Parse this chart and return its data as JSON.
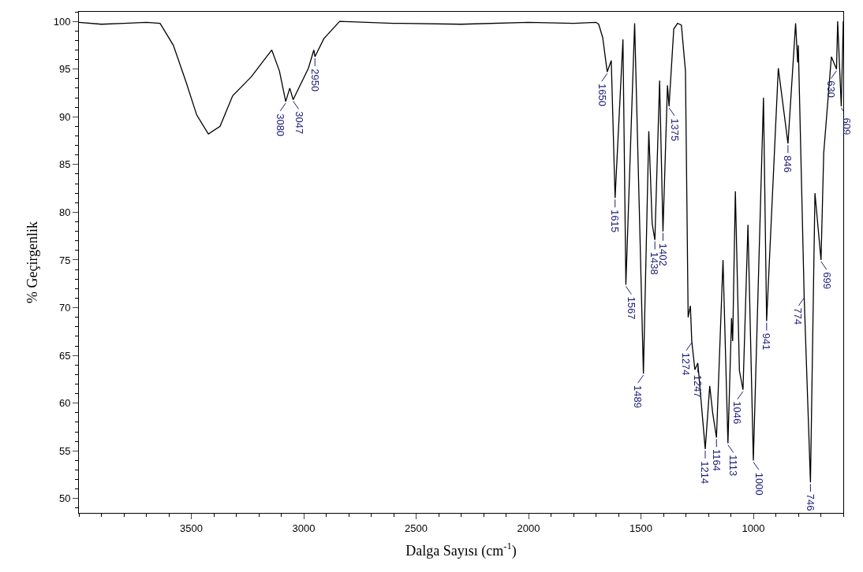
{
  "chart_data": {
    "type": "line",
    "xlabel": "Dalga Sayısı (cm$^{-1}$)",
    "ylabel": "% Geçirgenlik",
    "xlim": [
      4000,
      600
    ],
    "xticks": [
      3500,
      3000,
      2500,
      2000,
      1500,
      1000
    ],
    "ylim": [
      48.5,
      101
    ],
    "yticks": [
      50,
      55,
      60,
      65,
      70,
      75,
      80,
      85,
      90,
      95,
      100
    ],
    "marker": "none",
    "line_style": "solid",
    "series": [
      {
        "color": "#000000",
        "x": [
          4000,
          3900,
          3800,
          3700,
          3639,
          3580,
          3524,
          3476,
          3424,
          3372,
          3316,
          3233,
          3142,
          3108,
          3080,
          3062,
          3047,
          2979,
          2955,
          2950,
          2910,
          2840,
          2600,
          2300,
          2000,
          1800,
          1700,
          1688,
          1670,
          1650,
          1632,
          1615,
          1580,
          1567,
          1528,
          1489,
          1465,
          1450,
          1438,
          1417,
          1402,
          1382,
          1375,
          1354,
          1337,
          1320,
          1302,
          1290,
          1280,
          1274,
          1260,
          1247,
          1214,
          1194,
          1181,
          1164,
          1135,
          1113,
          1097,
          1092,
          1080,
          1062,
          1046,
          1024,
          1000,
          955,
          941,
          889,
          846,
          812,
          803,
          800,
          774,
          746,
          726,
          699,
          687,
          653,
          630,
          625,
          609,
          600
        ],
        "values": [
          99.9,
          99.7,
          99.8,
          99.9,
          99.8,
          97.5,
          93.7,
          90.2,
          88.2,
          89.0,
          92.2,
          94.2,
          97.0,
          94.8,
          91.6,
          93.0,
          91.8,
          95.1,
          97.0,
          96.3,
          98.2,
          100,
          99.8,
          99.7,
          99.9,
          99.8,
          99.9,
          99.7,
          98.3,
          94.7,
          95.9,
          81.5,
          98.1,
          72.4,
          99.8,
          63.1,
          88.5,
          78.8,
          77.1,
          93.8,
          78.0,
          93.3,
          91.1,
          99.2,
          99.8,
          99.6,
          94.8,
          69.0,
          70.2,
          66.5,
          63.5,
          64.2,
          55.2,
          61.8,
          59.0,
          56.4,
          75.0,
          55.8,
          68.9,
          66.5,
          82.2,
          63.4,
          61.4,
          78.7,
          54.0,
          92.0,
          68.6,
          95.1,
          87.2,
          99.8,
          95.7,
          97.5,
          71.2,
          51.7,
          82.0,
          75.0,
          86.2,
          96.3,
          95.0,
          100,
          91.1,
          100
        ]
      }
    ],
    "annotations": [
      {
        "text": "3080",
        "x": 3080,
        "y": 91.6
      },
      {
        "text": "3047",
        "x": 3047,
        "y": 91.8
      },
      {
        "text": "2950",
        "x": 2950,
        "y": 96.3
      },
      {
        "text": "1650",
        "x": 1650,
        "y": 94.7
      },
      {
        "text": "1615",
        "x": 1615,
        "y": 81.5
      },
      {
        "text": "1567",
        "x": 1567,
        "y": 72.4
      },
      {
        "text": "1489",
        "x": 1489,
        "y": 63.1
      },
      {
        "text": "1438",
        "x": 1438,
        "y": 77.1
      },
      {
        "text": "1402",
        "x": 1402,
        "y": 78.0
      },
      {
        "text": "1375",
        "x": 1375,
        "y": 91.1
      },
      {
        "text": "1274",
        "x": 1274,
        "y": 66.5
      },
      {
        "text": "1247",
        "x": 1247,
        "y": 64.2
      },
      {
        "text": "1214",
        "x": 1214,
        "y": 55.2
      },
      {
        "text": "1164",
        "x": 1164,
        "y": 56.4
      },
      {
        "text": "1113",
        "x": 1113,
        "y": 55.8
      },
      {
        "text": "1046",
        "x": 1046,
        "y": 61.4
      },
      {
        "text": "1000",
        "x": 1000,
        "y": 54.0
      },
      {
        "text": "941",
        "x": 941,
        "y": 68.6
      },
      {
        "text": "846",
        "x": 846,
        "y": 87.2
      },
      {
        "text": "774",
        "x": 774,
        "y": 71.2
      },
      {
        "text": "746",
        "x": 746,
        "y": 51.7
      },
      {
        "text": "699",
        "x": 699,
        "y": 75.0
      },
      {
        "text": "630",
        "x": 630,
        "y": 95.0
      },
      {
        "text": "609",
        "x": 609,
        "y": 91.1
      }
    ]
  }
}
